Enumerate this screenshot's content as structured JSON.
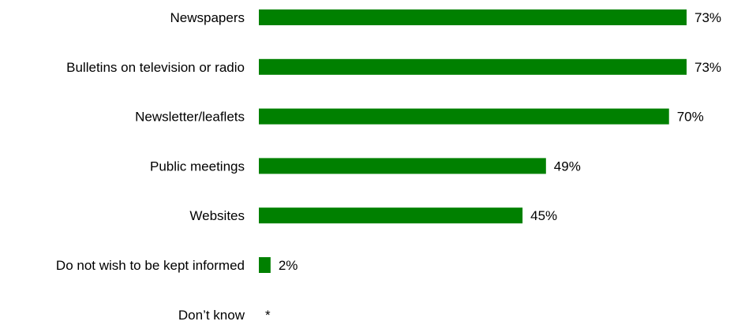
{
  "chart_data": {
    "type": "bar",
    "orientation": "horizontal",
    "categories": [
      "Newspapers",
      "Bulletins on television or radio",
      "Newsletter/leaflets",
      "Public meetings",
      "Websites",
      "Do not wish to be kept informed",
      "Don’t know"
    ],
    "values": [
      73,
      73,
      70,
      49,
      45,
      2,
      null
    ],
    "value_labels": [
      "73%",
      "73%",
      "70%",
      "49%",
      "45%",
      "2%",
      "*"
    ],
    "xlim": [
      0,
      73
    ],
    "grid": false,
    "legend": "none",
    "title": "",
    "xlabel": "",
    "ylabel": ""
  },
  "colors": {
    "bar": "#008000",
    "text": "#000000",
    "background": "#ffffff"
  }
}
